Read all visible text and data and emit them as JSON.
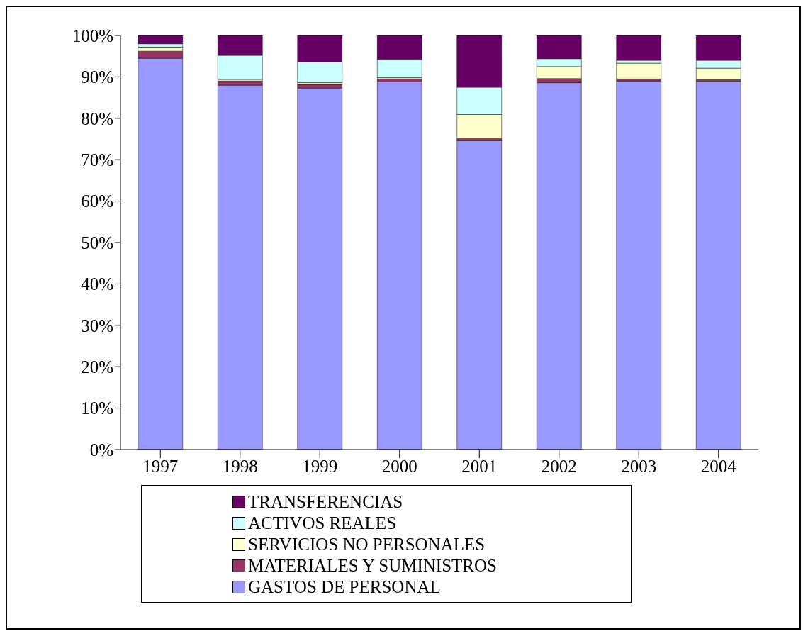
{
  "chart_data": {
    "type": "bar",
    "stacked": true,
    "categories": [
      "1997",
      "1998",
      "1999",
      "2000",
      "2001",
      "2002",
      "2003",
      "2004"
    ],
    "ylim": [
      0,
      100
    ],
    "yticks": [
      {
        "value": 0,
        "label": "0%"
      },
      {
        "value": 10,
        "label": "10%"
      },
      {
        "value": 20,
        "label": "20%"
      },
      {
        "value": 30,
        "label": "30%"
      },
      {
        "value": 40,
        "label": "40%"
      },
      {
        "value": 50,
        "label": "50%"
      },
      {
        "value": 60,
        "label": "60%"
      },
      {
        "value": 70,
        "label": "70%"
      },
      {
        "value": 80,
        "label": "80%"
      },
      {
        "value": 90,
        "label": "90%"
      },
      {
        "value": 100,
        "label": "100%"
      }
    ],
    "grid": false,
    "legend": "bottom",
    "series": [
      {
        "name": "GASTOS DE PERSONAL",
        "color": "#9999ff",
        "values": [
          94.5,
          88.0,
          87.3,
          88.8,
          74.6,
          88.6,
          89.0,
          88.9
        ]
      },
      {
        "name": "MATERIALES Y SUMINISTROS",
        "color": "#993366",
        "values": [
          1.7,
          1.0,
          0.9,
          0.7,
          0.5,
          1.0,
          0.5,
          0.4
        ]
      },
      {
        "name": "SERVICIOS NO PERSONALES",
        "color": "#ffffcc",
        "values": [
          1.0,
          0.4,
          0.4,
          0.3,
          5.8,
          2.9,
          3.8,
          2.8
        ]
      },
      {
        "name": "ACTIVOS REALES",
        "color": "#ccffff",
        "values": [
          0.8,
          5.8,
          5.0,
          4.5,
          6.6,
          1.9,
          0.7,
          1.9
        ]
      },
      {
        "name": "TRANSFERENCIAS",
        "color": "#660066",
        "values": [
          2.0,
          4.8,
          6.4,
          5.7,
          12.5,
          5.6,
          6.0,
          6.0
        ]
      }
    ]
  }
}
